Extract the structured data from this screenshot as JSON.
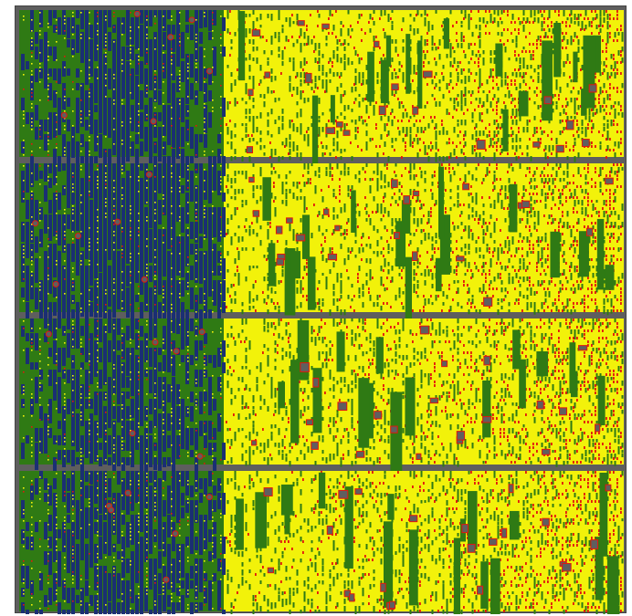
{
  "image": {
    "description_free": true,
    "palette": {
      "deep_vigor": "#1a2f73",
      "high_vigor": "#2f7a14",
      "medium_vigor": "#f2f20a",
      "low_vigor": "#e3160d",
      "gap": "#5f5f5f",
      "border": "#5e5e5e"
    },
    "plots": [
      {
        "id": "plot-1",
        "rows": 4
      },
      {
        "id": "plot-2",
        "rows": 4
      },
      {
        "id": "plot-3",
        "rows": 4
      },
      {
        "id": "plot-4",
        "rows": 4
      }
    ]
  }
}
